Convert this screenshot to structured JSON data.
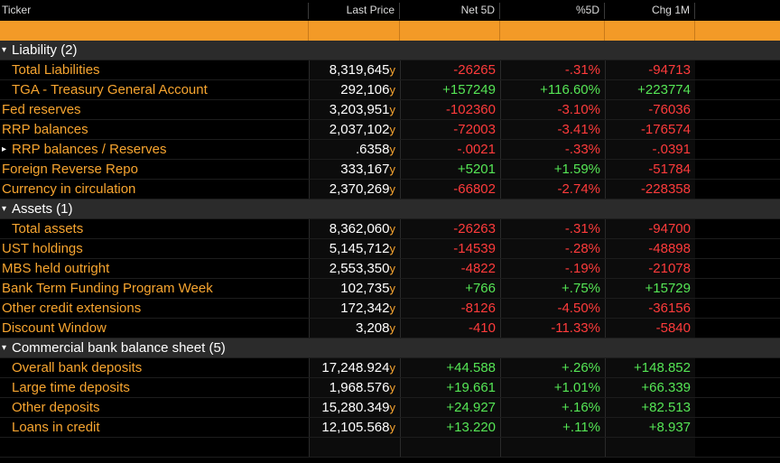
{
  "header": {
    "ticker": "Ticker",
    "last_price": "Last Price",
    "net5d": "Net 5D",
    "pct5d": "%5D",
    "chg1m": "Chg 1M"
  },
  "rows": [
    {
      "type": "group",
      "label": "Liability (2)",
      "icon": "caret-down-icon"
    },
    {
      "type": "data",
      "indent": 1,
      "name": "Total Liabilities",
      "price": "8,319,645",
      "unit": "y",
      "net5d": "-26265",
      "pct5d": "-.31%",
      "chg1m": "-94713",
      "net_dir": "neg",
      "pct_dir": "neg",
      "chg_dir": "neg"
    },
    {
      "type": "data",
      "indent": 1,
      "name": "TGA - Treasury General Account",
      "price": "292,106",
      "unit": "y",
      "net5d": "+157249",
      "pct5d": "+116.60%",
      "chg1m": "+223774",
      "net_dir": "pos",
      "pct_dir": "pos",
      "chg_dir": "pos"
    },
    {
      "type": "data",
      "indent": 0,
      "name": "Fed reserves",
      "price": "3,203,951",
      "unit": "y",
      "net5d": "-102360",
      "pct5d": "-3.10%",
      "chg1m": "-76036",
      "net_dir": "neg",
      "pct_dir": "neg",
      "chg_dir": "neg"
    },
    {
      "type": "data",
      "indent": 0,
      "name": "RRP balances",
      "price": "2,037,102",
      "unit": "y",
      "net5d": "-72003",
      "pct5d": "-3.41%",
      "chg1m": "-176574",
      "net_dir": "neg",
      "pct_dir": "neg",
      "chg_dir": "neg"
    },
    {
      "type": "data",
      "indent": 0,
      "expand": true,
      "name": "RRP balances / Reserves",
      "price": ".6358",
      "unit": "y",
      "net5d": "-.0021",
      "pct5d": "-.33%",
      "chg1m": "-.0391",
      "net_dir": "neg",
      "pct_dir": "neg",
      "chg_dir": "neg"
    },
    {
      "type": "data",
      "indent": 0,
      "name": "Foreign Reverse Repo",
      "price": "333,167",
      "unit": "y",
      "net5d": "+5201",
      "pct5d": "+1.59%",
      "chg1m": "-51784",
      "net_dir": "pos",
      "pct_dir": "pos",
      "chg_dir": "neg"
    },
    {
      "type": "data",
      "indent": 0,
      "name": "Currency in circulation",
      "price": "2,370,269",
      "unit": "y",
      "net5d": "-66802",
      "pct5d": "-2.74%",
      "chg1m": "-228358",
      "net_dir": "neg",
      "pct_dir": "neg",
      "chg_dir": "neg"
    },
    {
      "type": "group",
      "label": "Assets (1)",
      "icon": "caret-down-icon"
    },
    {
      "type": "data",
      "indent": 1,
      "name": "Total assets",
      "price": "8,362,060",
      "unit": "y",
      "net5d": "-26263",
      "pct5d": "-.31%",
      "chg1m": "-94700",
      "net_dir": "neg",
      "pct_dir": "neg",
      "chg_dir": "neg"
    },
    {
      "type": "data",
      "indent": 0,
      "name": "UST holdings",
      "price": "5,145,712",
      "unit": "y",
      "net5d": "-14539",
      "pct5d": "-.28%",
      "chg1m": "-48898",
      "net_dir": "neg",
      "pct_dir": "neg",
      "chg_dir": "neg"
    },
    {
      "type": "data",
      "indent": 0,
      "name": "MBS held outright",
      "price": "2,553,350",
      "unit": "y",
      "net5d": "-4822",
      "pct5d": "-.19%",
      "chg1m": "-21078",
      "net_dir": "neg",
      "pct_dir": "neg",
      "chg_dir": "neg"
    },
    {
      "type": "data",
      "indent": 0,
      "name": "Bank Term Funding Program Week",
      "price": "102,735",
      "unit": "y",
      "net5d": "+766",
      "pct5d": "+.75%",
      "chg1m": "+15729",
      "net_dir": "pos",
      "pct_dir": "pos",
      "chg_dir": "pos"
    },
    {
      "type": "data",
      "indent": 0,
      "name": "Other credit extensions",
      "price": "172,342",
      "unit": "y",
      "net5d": "-8126",
      "pct5d": "-4.50%",
      "chg1m": "-36156",
      "net_dir": "neg",
      "pct_dir": "neg",
      "chg_dir": "neg"
    },
    {
      "type": "data",
      "indent": 0,
      "name": "Discount Window",
      "price": "3,208",
      "unit": "y",
      "net5d": "-410",
      "pct5d": "-11.33%",
      "chg1m": "-5840",
      "net_dir": "neg",
      "pct_dir": "neg",
      "chg_dir": "neg"
    },
    {
      "type": "group",
      "label": "Commercial bank balance sheet (5)",
      "icon": "caret-down-icon"
    },
    {
      "type": "data",
      "indent": 1,
      "name": "Overall bank deposits",
      "price": "17,248.924",
      "unit": "y",
      "net5d": "+44.588",
      "pct5d": "+.26%",
      "chg1m": "+148.852",
      "net_dir": "pos",
      "pct_dir": "pos",
      "chg_dir": "pos"
    },
    {
      "type": "data",
      "indent": 1,
      "name": "Large time deposits",
      "price": "1,968.576",
      "unit": "y",
      "net5d": "+19.661",
      "pct5d": "+1.01%",
      "chg1m": "+66.339",
      "net_dir": "pos",
      "pct_dir": "pos",
      "chg_dir": "pos"
    },
    {
      "type": "data",
      "indent": 1,
      "name": "Other deposits",
      "price": "15,280.349",
      "unit": "y",
      "net5d": "+24.927",
      "pct5d": "+.16%",
      "chg1m": "+82.513",
      "net_dir": "pos",
      "pct_dir": "pos",
      "chg_dir": "pos"
    },
    {
      "type": "data",
      "indent": 1,
      "name": "Loans in credit",
      "price": "12,105.568",
      "unit": "y",
      "net5d": "+13.220",
      "pct5d": "+.11%",
      "chg1m": "+8.937",
      "net_dir": "pos",
      "pct_dir": "pos",
      "chg_dir": "pos"
    },
    {
      "type": "empty"
    }
  ],
  "colors": {
    "accent_orange": "#f39a27",
    "label_orange": "#f7a530",
    "negative": "#ff3b3b",
    "positive": "#55e655",
    "group_row_bg": "#2b2b2b",
    "background": "#000000"
  }
}
